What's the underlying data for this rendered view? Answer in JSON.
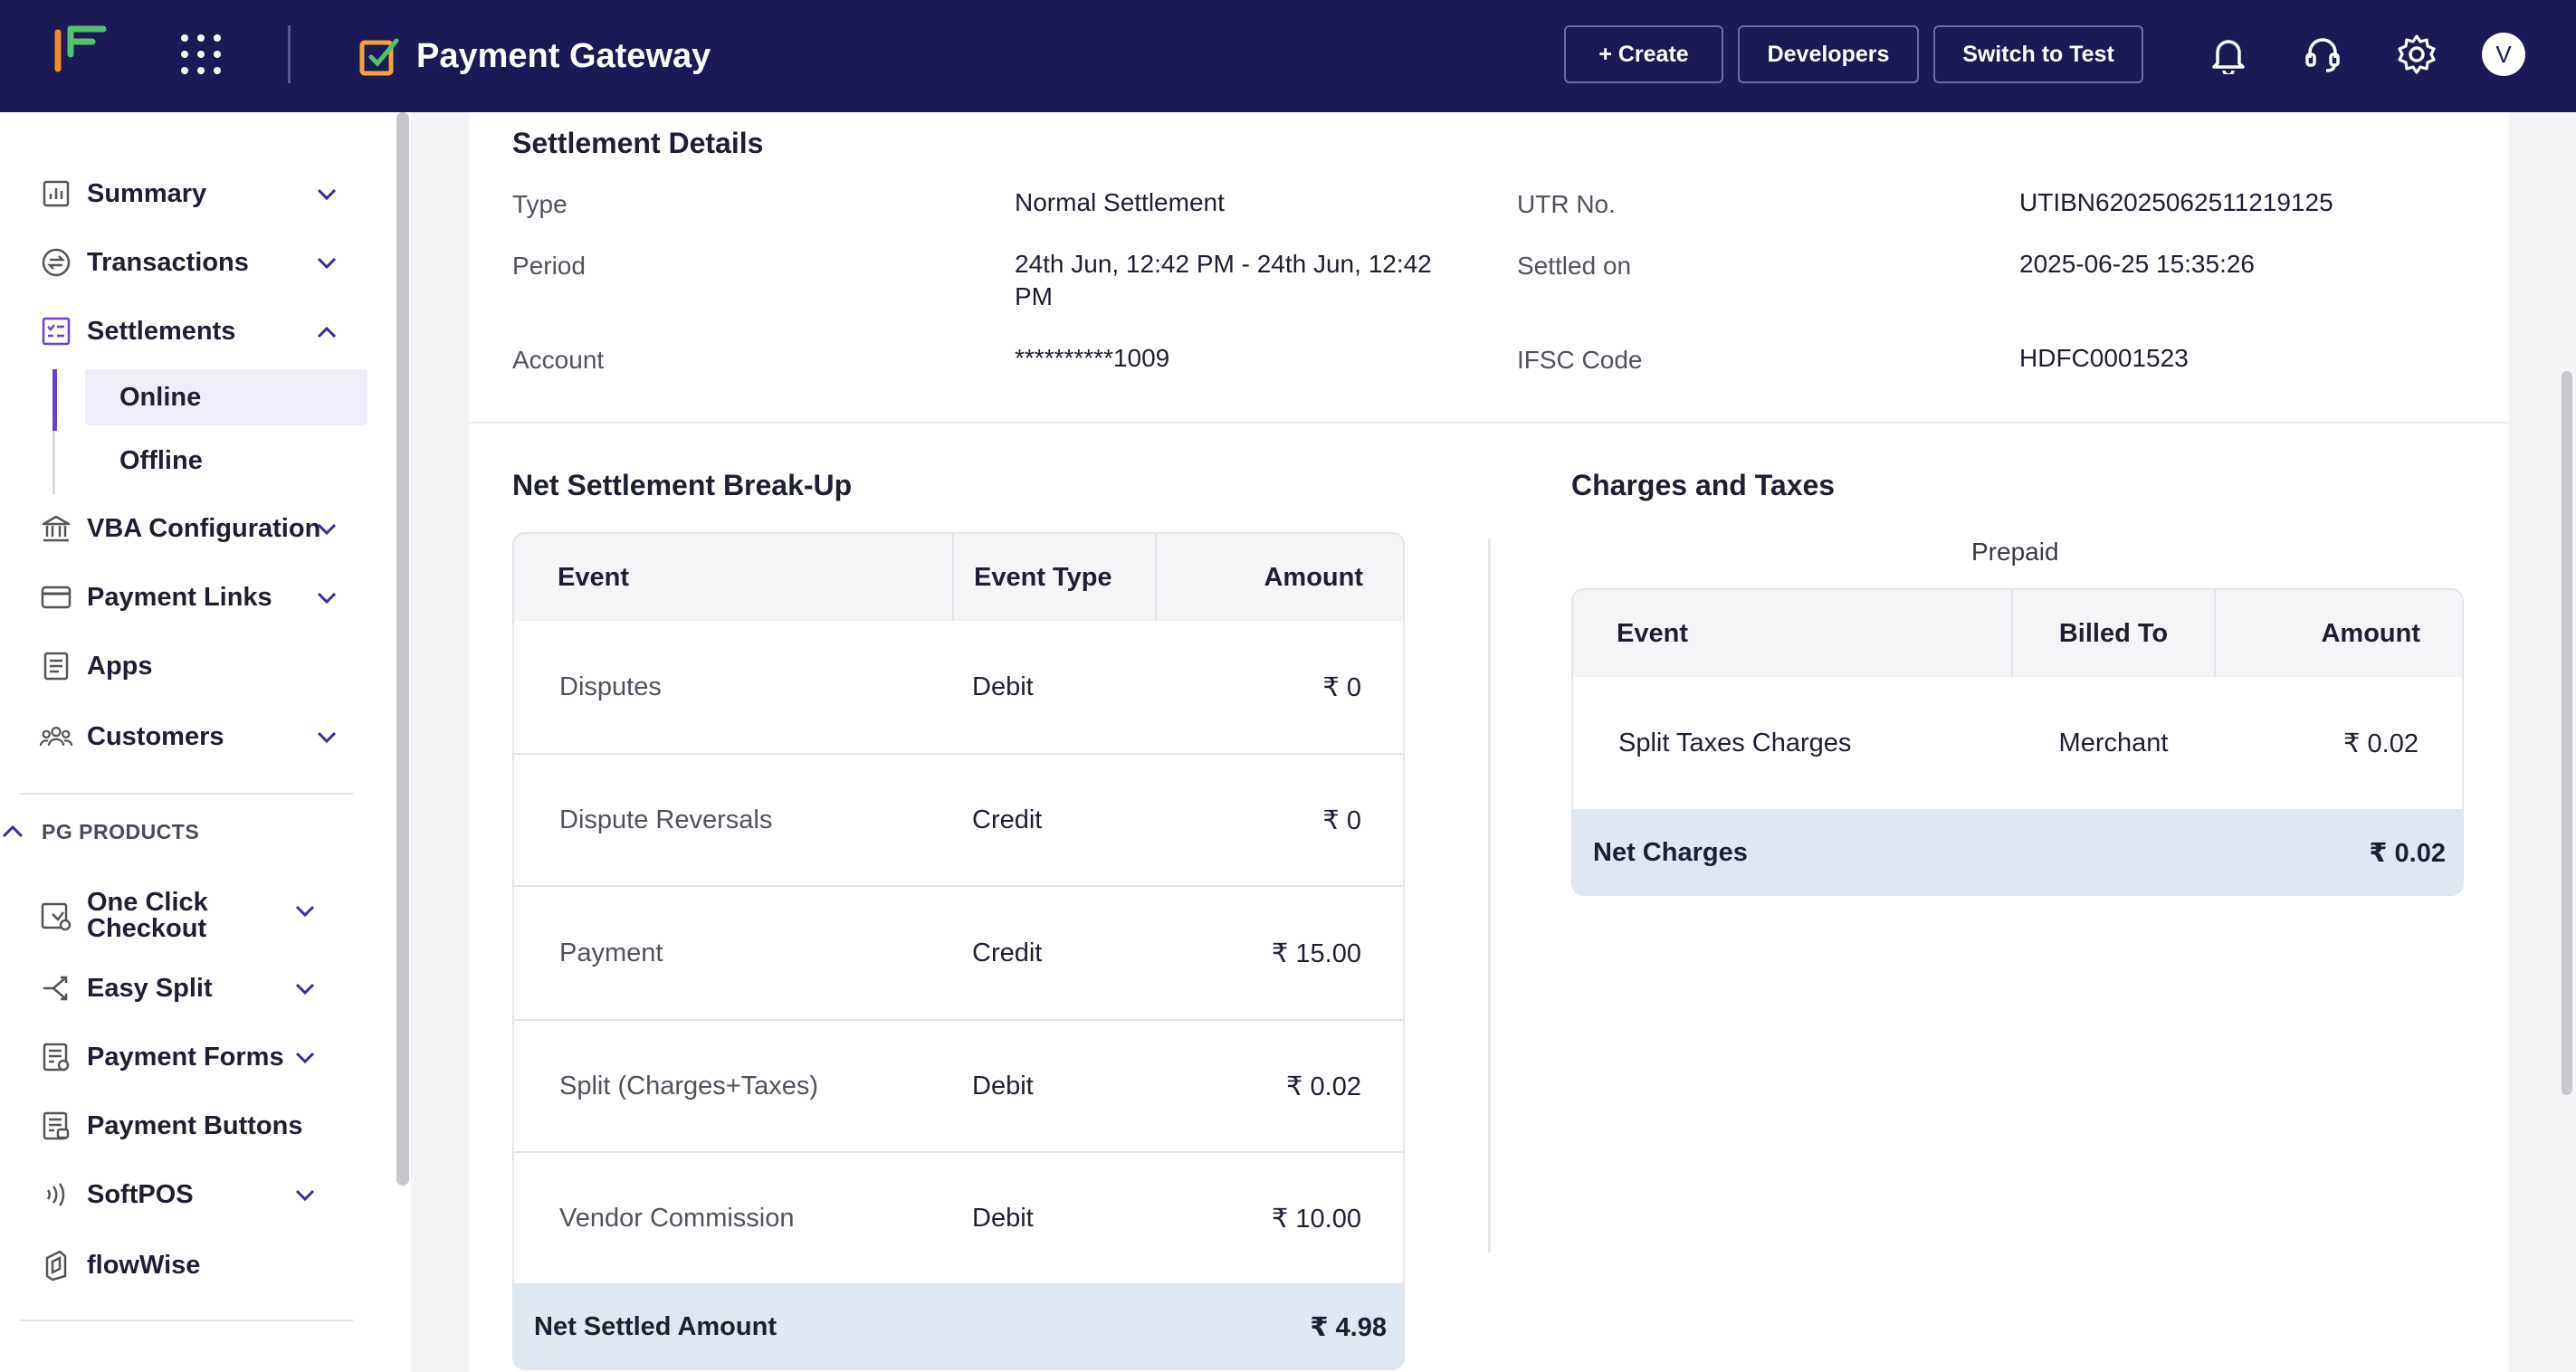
{
  "header": {
    "product_title": "Payment Gateway",
    "create_label": "+ Create",
    "developers_label": "Developers",
    "switch_label": "Switch to Test",
    "avatar_initial": "V",
    "brand_color": "#1b1a57"
  },
  "sidebar": {
    "items": [
      {
        "label": "Summary",
        "icon": "chart-icon"
      },
      {
        "label": "Transactions",
        "icon": "transactions-icon"
      },
      {
        "label": "Settlements",
        "icon": "settlements-icon"
      },
      {
        "label": "VBA Configuration",
        "icon": "bank-icon"
      },
      {
        "label": "Payment Links",
        "icon": "card-icon"
      },
      {
        "label": "Apps",
        "icon": "apps-doc-icon"
      },
      {
        "label": "Customers",
        "icon": "users-icon"
      }
    ],
    "sub_items": [
      {
        "label": "Online",
        "active": true
      },
      {
        "label": "Offline",
        "active": false
      }
    ],
    "section_label": "PG PRODUCTS",
    "product_items": [
      {
        "label_line1": "One Click",
        "label_line2": "Checkout",
        "icon": "checkout-icon"
      },
      {
        "label": "Easy Split",
        "icon": "split-icon"
      },
      {
        "label": "Payment Forms",
        "icon": "form-icon"
      },
      {
        "label": "Payment Buttons",
        "icon": "button-form-icon"
      },
      {
        "label": "SoftPOS",
        "icon": "contactless-icon"
      },
      {
        "label": "flowWise",
        "icon": "flow-icon"
      }
    ],
    "accent_color": "#6a3fd0"
  },
  "settlement_details": {
    "title": "Settlement Details",
    "type_label": "Type",
    "type_value": "Normal Settlement",
    "period_label": "Period",
    "period_value_line1": "24th Jun, 12:42 PM - 24th Jun, 12:42",
    "period_value_line2": "PM",
    "account_label": "Account",
    "account_value": "**********1009",
    "utr_label": "UTR No.",
    "utr_value": "UTIBN62025062511219125",
    "settled_label": "Settled on",
    "settled_value": "2025-06-25 15:35:26",
    "ifsc_label": "IFSC Code",
    "ifsc_value": "HDFC0001523"
  },
  "breakup": {
    "title": "Net Settlement Break-Up",
    "headers": [
      "Event",
      "Event Type",
      "Amount"
    ],
    "rows": [
      {
        "event": "Disputes",
        "type": "Debit",
        "amount": "₹ 0"
      },
      {
        "event": "Dispute Reversals",
        "type": "Credit",
        "amount": "₹ 0"
      },
      {
        "event": "Payment",
        "type": "Credit",
        "amount": "₹ 15.00"
      },
      {
        "event": "Split (Charges+Taxes)",
        "type": "Debit",
        "amount": "₹ 0.02"
      },
      {
        "event": "Vendor Commission",
        "type": "Debit",
        "amount": "₹ 10.00"
      }
    ],
    "footer_label": "Net Settled Amount",
    "footer_amount": "₹ 4.98"
  },
  "charges": {
    "title": "Charges and Taxes",
    "subtitle": "Prepaid",
    "headers": [
      "Event",
      "Billed To",
      "Amount"
    ],
    "rows": [
      {
        "event": "Split Taxes Charges",
        "billed_to": "Merchant",
        "amount": "₹ 0.02"
      }
    ],
    "footer_label": "Net Charges",
    "footer_amount": "₹ 0.02"
  }
}
